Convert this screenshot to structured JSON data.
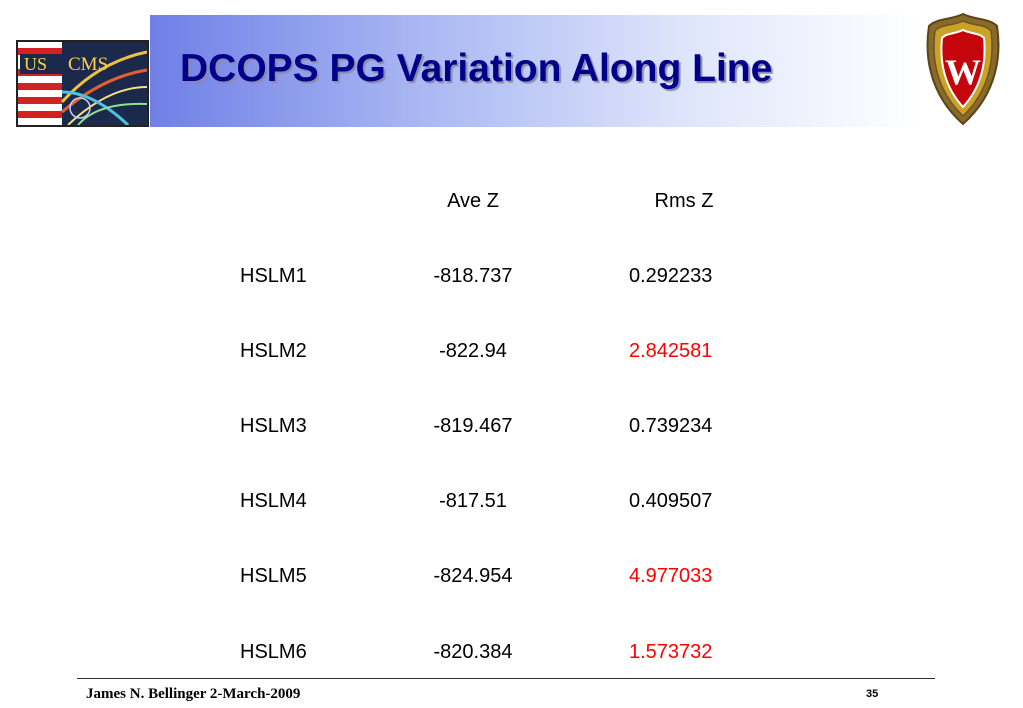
{
  "slide": {
    "title": "DCOPS PG Variation Along Line",
    "logo_left_text_1": "US",
    "logo_left_text_2": "CMS",
    "logo_right_letter": "W"
  },
  "table": {
    "headers": [
      "",
      "Ave Z",
      "Rms Z"
    ],
    "rows": [
      {
        "name": "HSLM1",
        "ave_z": "-818.737",
        "rms_z": "0.292233",
        "rms_highlight": false
      },
      {
        "name": "HSLM2",
        "ave_z": "-822.94",
        "rms_z": "2.842581",
        "rms_highlight": true
      },
      {
        "name": "HSLM3",
        "ave_z": "-819.467",
        "rms_z": "0.739234",
        "rms_highlight": false
      },
      {
        "name": "HSLM4",
        "ave_z": "-817.51",
        "rms_z": "0.409507",
        "rms_highlight": false
      },
      {
        "name": "HSLM5",
        "ave_z": "-824.954",
        "rms_z": "4.977033",
        "rms_highlight": true
      },
      {
        "name": "HSLM6",
        "ave_z": "-820.384",
        "rms_z": "1.573732",
        "rms_highlight": true
      }
    ]
  },
  "footer": {
    "author_date": "James N. Bellinger 2-March-2009",
    "page_number": "35"
  },
  "colors": {
    "title": "#00008b",
    "highlight": "#ff0000",
    "title_bar_start": "#6f7fe6",
    "title_bar_end": "#ffffff",
    "badger_red": "#c5050c",
    "crest_gold": "#c9a227"
  }
}
